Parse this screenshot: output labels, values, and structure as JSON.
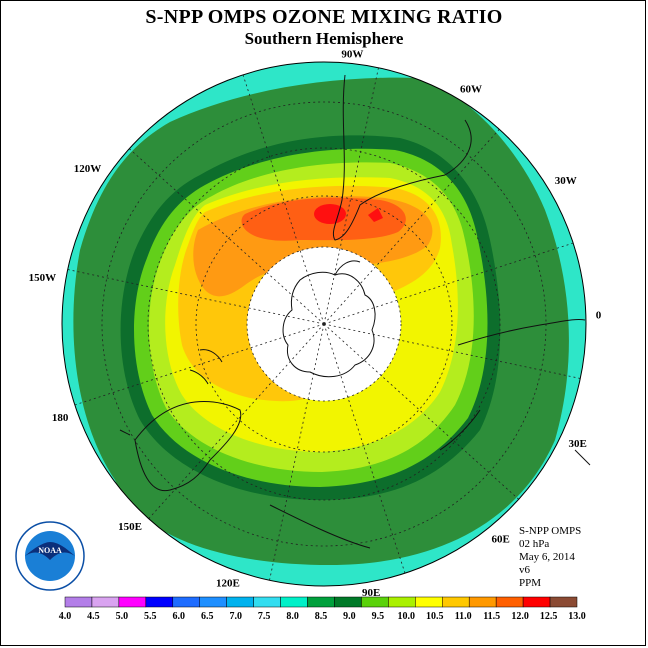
{
  "title": "S-NPP OMPS OZONE MIXING RATIO",
  "subtitle": "Southern Hemisphere",
  "info": {
    "product": "S-NPP OMPS",
    "level": "02 hPa",
    "date": "May 6, 2014",
    "version": "v6",
    "units": "PPM"
  },
  "logo": {
    "text": "NOAA",
    "ring_text": "NATIONAL OCEANIC AND ATMOSPHERIC ADMINISTRATION · U.S. DEPARTMENT OF COMMERCE"
  },
  "longitude_labels": [
    "90W",
    "60W",
    "30W",
    "0",
    "30E",
    "60E",
    "90E",
    "120E",
    "150E",
    "180",
    "150W",
    "120W"
  ],
  "colorbar": {
    "ticks": [
      "4.0",
      "4.5",
      "5.0",
      "5.5",
      "6.0",
      "6.5",
      "7.0",
      "7.5",
      "8.0",
      "8.5",
      "9.0",
      "9.5",
      "10.0",
      "10.5",
      "11.0",
      "11.5",
      "12.0",
      "12.5",
      "13.0"
    ],
    "colors": [
      "#b37ee8",
      "#d9a3f0",
      "#ff00ff",
      "#0000ff",
      "#1e6cff",
      "#1e8fff",
      "#00b2ee",
      "#32ddf0",
      "#00f0c8",
      "#00a03c",
      "#007a28",
      "#5ad20a",
      "#aaf000",
      "#ffff00",
      "#ffc800",
      "#ff9900",
      "#ff5f00",
      "#ff0000",
      "#8b4a33"
    ]
  },
  "map_data": {
    "projection": "south-polar-stereographic",
    "bands": [
      {
        "color": "#2ee6c8",
        "value": "8.0"
      },
      {
        "color": "#2d8e3a",
        "value": "8.5"
      },
      {
        "color": "#0d6e2c",
        "value": "9.0"
      },
      {
        "color": "#62cf1a",
        "value": "9.5"
      },
      {
        "color": "#b4ed1e",
        "value": "10.0"
      },
      {
        "color": "#f2f500",
        "value": "10.5"
      },
      {
        "color": "#ffc70a",
        "value": "11.0"
      },
      {
        "color": "#ff9a12",
        "value": "11.5"
      },
      {
        "color": "#ff5f14",
        "value": "12.0"
      },
      {
        "color": "#ff1010",
        "value": "12.5"
      }
    ]
  }
}
